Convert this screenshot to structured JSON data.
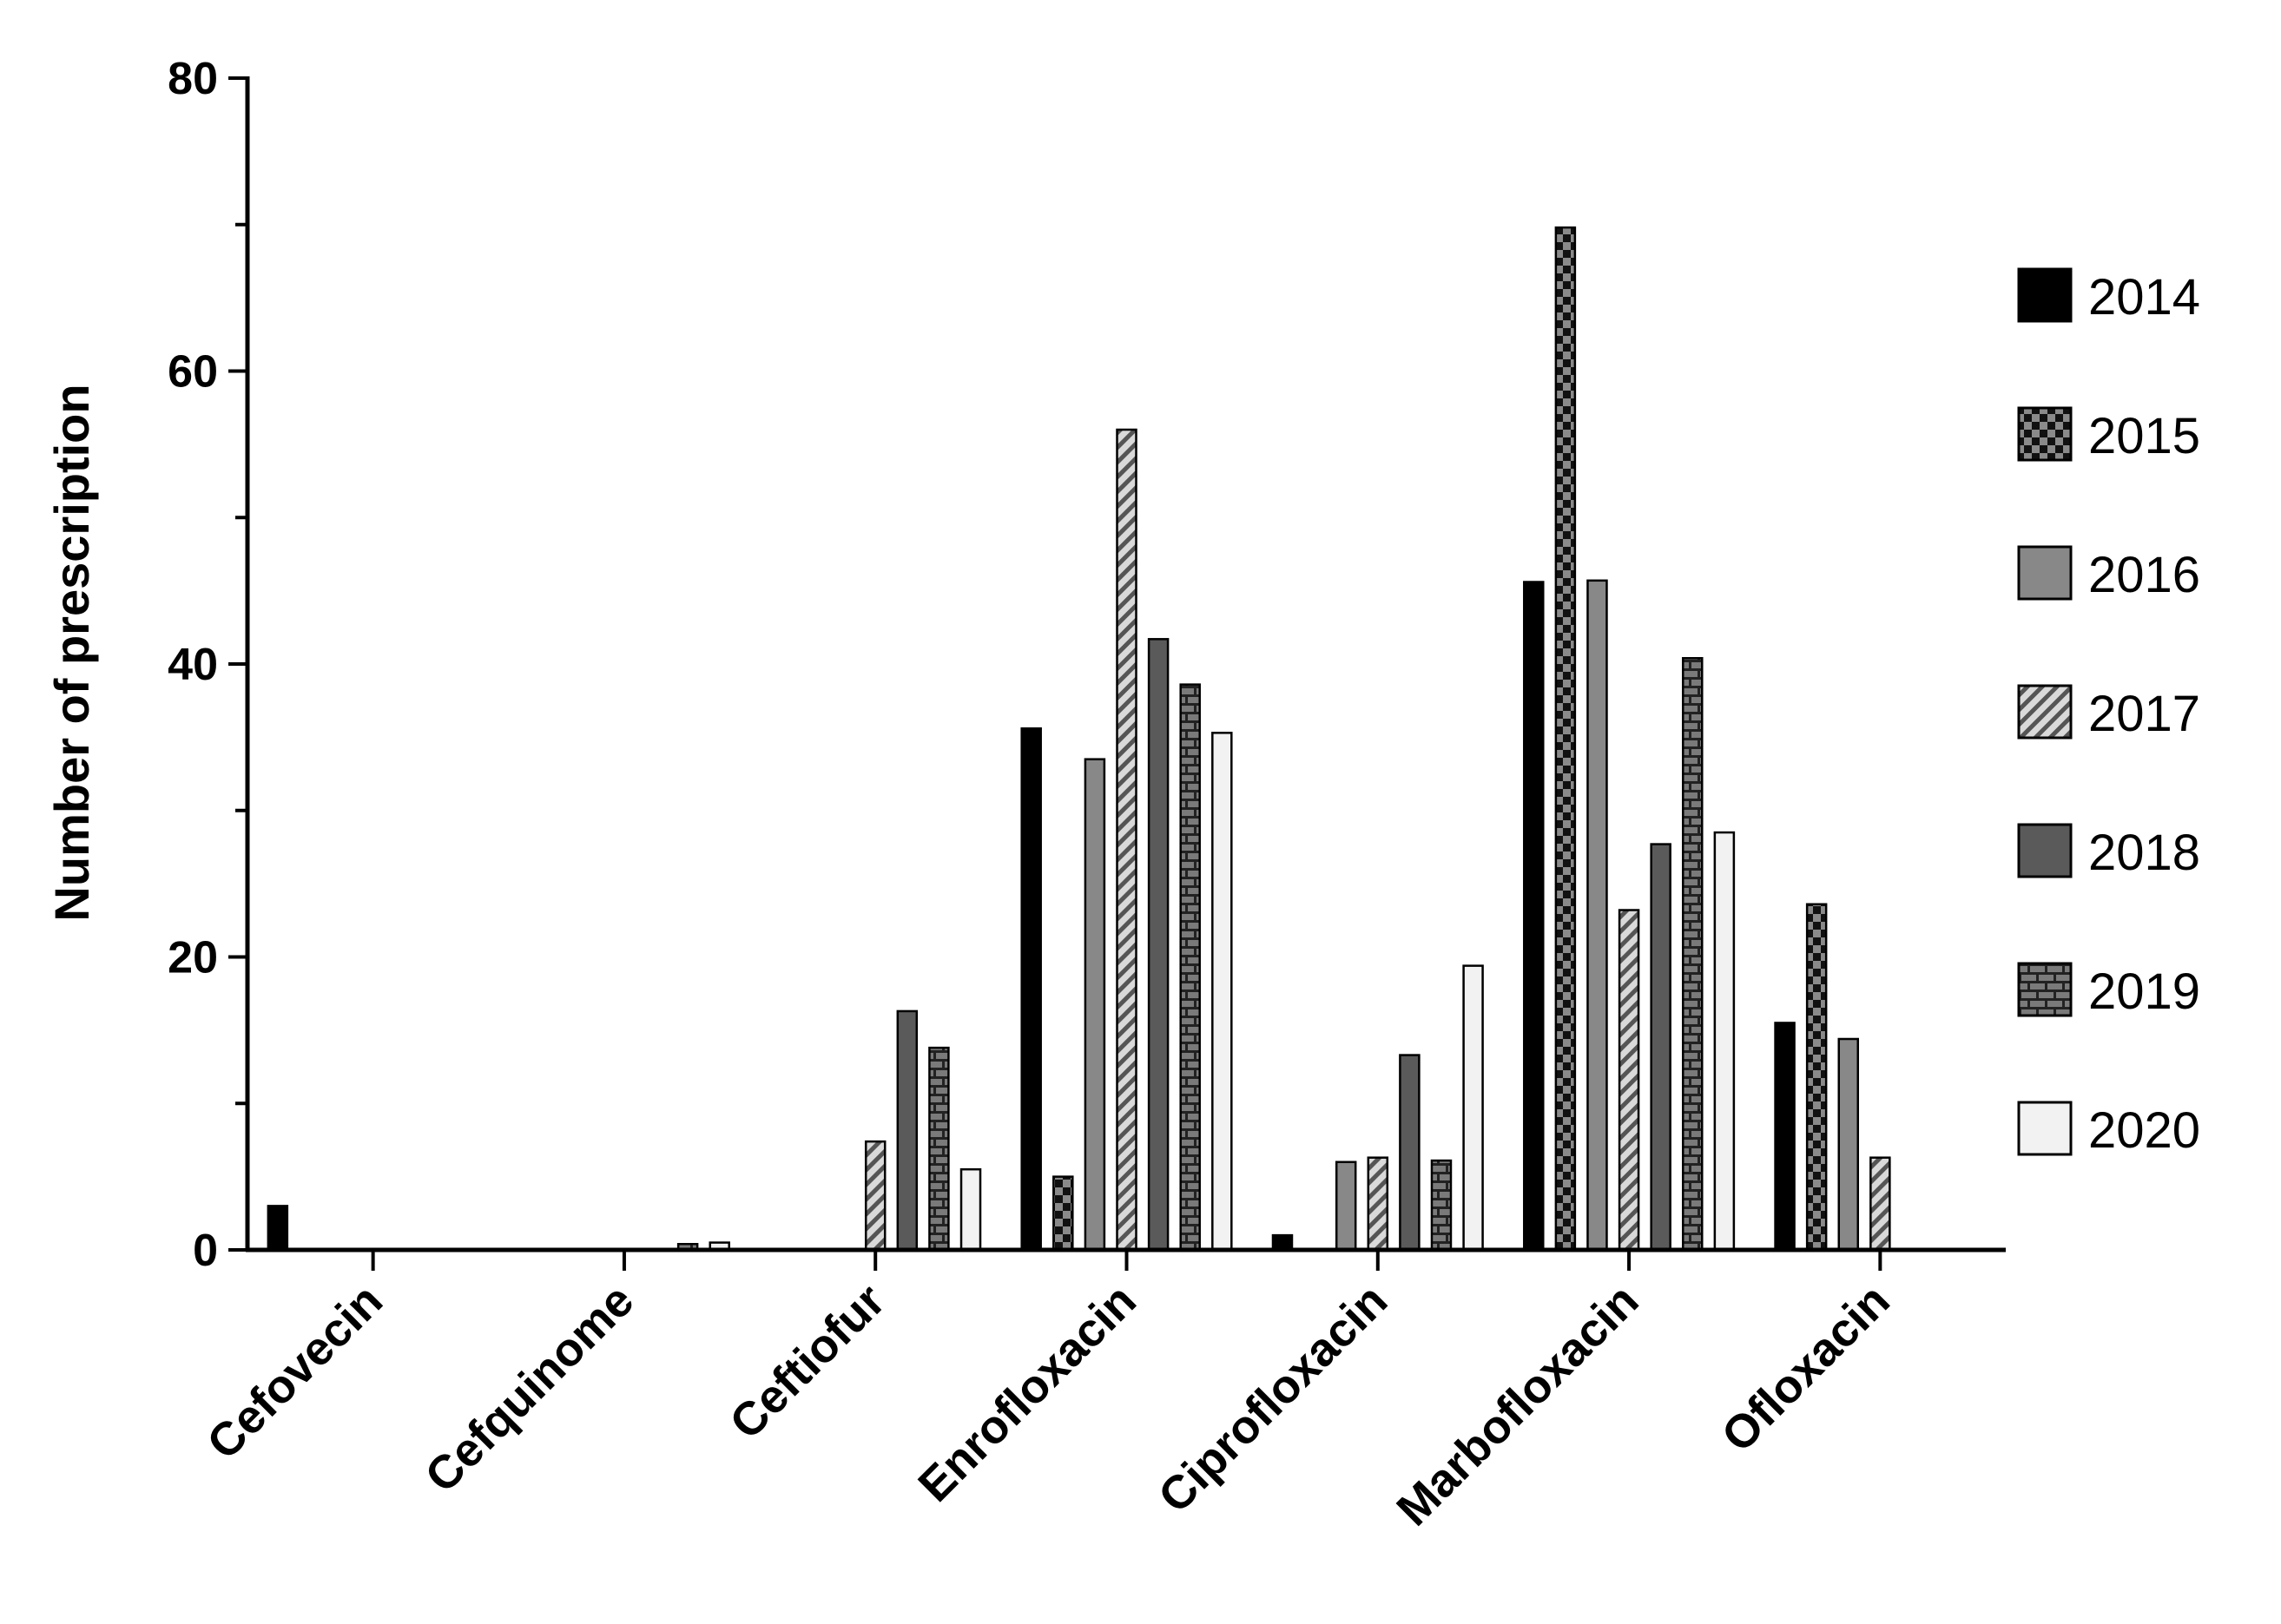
{
  "chart_data": {
    "type": "bar",
    "ylabel": "Number of prescription",
    "xlabel": "",
    "ylim": [
      0,
      80
    ],
    "yticks": [
      "0",
      "20",
      "40",
      "60",
      "80"
    ],
    "categories": [
      "Cefovecin",
      "Cefquinome",
      "Ceftiofur",
      "Enrofloxacin",
      "Ciprofloxacin",
      "Marbofloxacin",
      "Ofloxacin"
    ],
    "legend_position": "right",
    "series": [
      {
        "name": "2014",
        "pattern": "solid-black",
        "values": [
          3,
          0,
          0,
          35.6,
          1,
          45.6,
          15.5
        ]
      },
      {
        "name": "2015",
        "pattern": "checker",
        "values": [
          0,
          0,
          0,
          5,
          0,
          69.8,
          23.6
        ]
      },
      {
        "name": "2016",
        "pattern": "solid-gray",
        "values": [
          0,
          0,
          0,
          33.5,
          6,
          45.7,
          14.4
        ]
      },
      {
        "name": "2017",
        "pattern": "diagonal-hatch",
        "values": [
          0,
          0,
          7.4,
          56,
          6.3,
          23.2,
          6.3
        ]
      },
      {
        "name": "2018",
        "pattern": "solid-dark-gray",
        "values": [
          0,
          0,
          16.3,
          41.7,
          13.3,
          27.7,
          0
        ]
      },
      {
        "name": "2019",
        "pattern": "brick",
        "values": [
          0,
          0.4,
          13.8,
          38.6,
          6.1,
          40.4,
          0
        ]
      },
      {
        "name": "2020",
        "pattern": "solid-white",
        "values": [
          0,
          0.5,
          5.5,
          35.3,
          19.4,
          28.5,
          0
        ]
      }
    ]
  }
}
